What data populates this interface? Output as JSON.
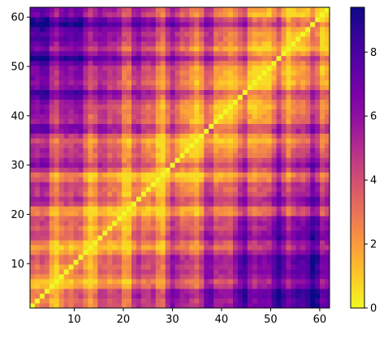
{
  "chart_data": {
    "type": "heatmap",
    "title": "",
    "xlabel": "",
    "ylabel": "",
    "n": 62,
    "x_range": [
      1,
      62
    ],
    "y_range": [
      1,
      62
    ],
    "origin": "lower",
    "x_ticks": [
      10,
      20,
      30,
      40,
      50,
      60
    ],
    "y_ticks": [
      10,
      20,
      30,
      40,
      50,
      60
    ],
    "x_tick_labels": [
      "10",
      "20",
      "30",
      "40",
      "50",
      "60"
    ],
    "y_tick_labels": [
      "10",
      "20",
      "30",
      "40",
      "50",
      "60"
    ],
    "colormap": "plasma_r",
    "value_range": [
      0,
      9.4
    ],
    "colorbar_ticks": [
      0,
      2,
      4,
      6,
      8
    ],
    "colorbar_tick_labels": [
      "0",
      "2",
      "4",
      "6",
      "8"
    ],
    "diagonal_value": 0,
    "symmetric": false,
    "grid": false,
    "colorbar_position": "right",
    "description_values": "Distance-matrix-like field: zero on the diagonal, values grow with separation from the diagonal; the lower-right and upper-left corners reach about 8-9."
  }
}
